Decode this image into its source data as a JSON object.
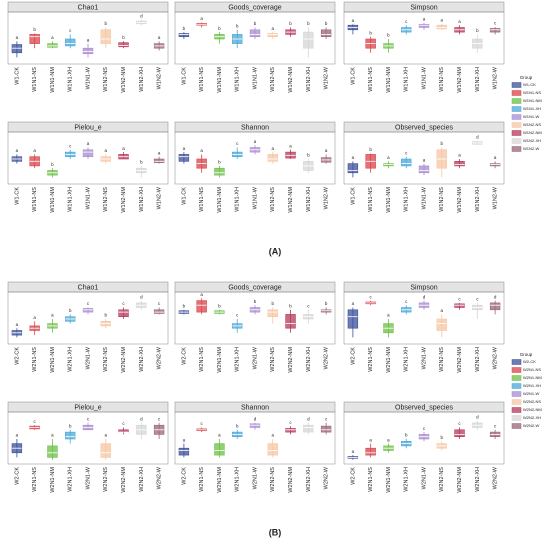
{
  "chart_data": [
    {
      "type": "box",
      "title": "Chao1",
      "categories": [
        "W1-CK",
        "W1N1-NS",
        "W1N1-NM",
        "W1N1-XH",
        "W1N1-W",
        "W1N2-NS",
        "W1N2-NM",
        "W1N2-XH",
        "W1N2-W"
      ],
      "ylim": [
        0,
        10
      ],
      "low": [
        1,
        3,
        3,
        3,
        1,
        3,
        3,
        8,
        2.5
      ],
      "q1": [
        2,
        4,
        3.2,
        3.5,
        1.8,
        4,
        3.3,
        8.3,
        3
      ],
      "median": [
        3,
        5.5,
        3.5,
        4,
        2.3,
        5,
        3.6,
        8.6,
        3.5
      ],
      "q3": [
        3.8,
        6,
        4,
        5,
        3,
        7,
        4.2,
        8.9,
        4
      ],
      "high": [
        4.5,
        6.2,
        4.5,
        6,
        4,
        7.5,
        4.5,
        9.2,
        4.5
      ],
      "letters": [
        "a",
        "b",
        "a",
        "c",
        "a",
        "b",
        "b",
        "d",
        "a"
      ]
    },
    {
      "type": "box",
      "title": "Goods_coverage",
      "categories": [
        "W1-CK",
        "W1N1-NS",
        "W1N1-NM",
        "W1N1-XH",
        "W1N1-W",
        "W1N2-NS",
        "W1N2-NM",
        "W1N2-XH",
        "W1N2-W"
      ],
      "ylim": [
        0,
        10
      ],
      "low": [
        5,
        7.5,
        4,
        3,
        5,
        5,
        5.5,
        1,
        5
      ],
      "q1": [
        5.5,
        8,
        5,
        4,
        5.5,
        5.5,
        6,
        3,
        5.5
      ],
      "median": [
        6,
        8.2,
        5.5,
        5,
        6,
        6,
        6.5,
        5,
        6
      ],
      "q3": [
        6.2,
        8.4,
        6,
        6,
        7,
        6.2,
        7,
        6.5,
        7
      ],
      "high": [
        6.5,
        8.6,
        6.5,
        7,
        7.5,
        6.5,
        7.5,
        7.5,
        7.5
      ],
      "letters": [
        "b",
        "a",
        "b",
        "b",
        "b",
        "a",
        "b",
        "b",
        "b"
      ]
    },
    {
      "type": "box",
      "title": "Simpson",
      "categories": [
        "W1-CK",
        "W1N1-NS",
        "W1N1-NM",
        "W1N1-XH",
        "W1N1-W",
        "W1N2-NS",
        "W1N2-NM",
        "W1N2-XH",
        "W1N2-W"
      ],
      "ylim": [
        0,
        10
      ],
      "low": [
        6,
        2,
        2,
        6,
        7,
        7,
        6,
        2,
        6
      ],
      "q1": [
        7,
        3,
        3,
        6.5,
        7.5,
        7.2,
        6.5,
        3,
        6.5
      ],
      "median": [
        7.5,
        4,
        3.5,
        7,
        8,
        7.5,
        7,
        4,
        7
      ],
      "q3": [
        8,
        5,
        4,
        7.5,
        8.2,
        8,
        7.5,
        5,
        7.3
      ],
      "high": [
        8.2,
        5.5,
        5,
        8,
        8.5,
        8.3,
        8,
        6,
        7.6
      ],
      "letters": [
        "a",
        "b",
        "b",
        "c",
        "a",
        "a",
        "a",
        "b",
        "c"
      ]
    },
    {
      "type": "box",
      "title": "Pielou_e",
      "categories": [
        "W1-CK",
        "W1N1-NS",
        "W1N1-NM",
        "W1N1-XH",
        "W1N1-W",
        "W1N2-NS",
        "W1N2-NM",
        "W1N2-XH",
        "W1N2-W"
      ],
      "ylim": [
        0,
        10
      ],
      "low": [
        4,
        3,
        1,
        5,
        5,
        4,
        5,
        1,
        4
      ],
      "q1": [
        4.5,
        3.5,
        1.5,
        5.5,
        5.5,
        4.5,
        5,
        2,
        4.2
      ],
      "median": [
        5,
        4.5,
        2,
        6,
        6.5,
        5,
        5.5,
        2.5,
        4.5
      ],
      "q3": [
        5.5,
        5.5,
        2.5,
        6.5,
        7,
        5.5,
        6,
        3,
        5
      ],
      "high": [
        6,
        6,
        3,
        7,
        7.5,
        6,
        6.5,
        3.5,
        5.5
      ],
      "letters": [
        "a",
        "a",
        "b",
        "c",
        "a",
        "a",
        "a",
        "b",
        "a"
      ]
    },
    {
      "type": "box",
      "title": "Shannon",
      "categories": [
        "W1-CK",
        "W1N1-NS",
        "W1N1-NM",
        "W1N1-XH",
        "W1N1-W",
        "W1N2-NS",
        "W1N2-NM",
        "W1N2-XH",
        "W1N2-W"
      ],
      "ylim": [
        0,
        10
      ],
      "low": [
        4,
        2,
        1,
        5,
        6,
        4,
        5,
        2,
        4
      ],
      "q1": [
        4.5,
        3,
        1.5,
        5.5,
        6.5,
        4.5,
        5.2,
        2.5,
        4.3
      ],
      "median": [
        5.5,
        4,
        2,
        6,
        7,
        5,
        5.8,
        3.5,
        4.8
      ],
      "q3": [
        6,
        5,
        3,
        6.5,
        7.5,
        6,
        6.5,
        4.5,
        5.3
      ],
      "high": [
        6.5,
        6,
        3.5,
        7.5,
        8,
        6.5,
        7,
        5,
        6
      ],
      "letters": [
        "a",
        "a",
        "b",
        "c",
        "a",
        "a",
        "a",
        "b",
        "a"
      ]
    },
    {
      "type": "box",
      "title": "Observed_species",
      "categories": [
        "W1-CK",
        "W1N1-NS",
        "W1N1-NM",
        "W1N1-XH",
        "W1N1-W",
        "W1N2-NS",
        "W1N2-NM",
        "W1N2-XH",
        "W1N2-W"
      ],
      "ylim": [
        0,
        10
      ],
      "low": [
        1,
        2,
        3,
        3,
        1.5,
        1,
        3,
        8,
        3
      ],
      "q1": [
        2,
        3,
        3.5,
        3.5,
        2,
        3,
        3.5,
        8.2,
        3.5
      ],
      "median": [
        2.5,
        4.5,
        3.8,
        4,
        2.5,
        5,
        3.8,
        8.5,
        3.8
      ],
      "q3": [
        4,
        6,
        4,
        5,
        3.5,
        7,
        4.5,
        8.8,
        4
      ],
      "high": [
        4.5,
        6.2,
        4.5,
        5.5,
        4,
        7.5,
        5,
        9,
        4.5
      ],
      "letters": [
        "a",
        "b",
        "a",
        "c",
        "a",
        "b",
        "a",
        "d",
        "a"
      ]
    },
    {
      "type": "box",
      "title": "Chao1",
      "categories": [
        "W2-CK",
        "W2N1-NS",
        "W2N1-NM",
        "W2N1-XH",
        "W2N1-W",
        "W2N2-NS",
        "W2N2-NM",
        "W2N2-XH",
        "W2N2-W"
      ],
      "ylim": [
        0,
        10
      ],
      "low": [
        1,
        1.5,
        2,
        4,
        6,
        3,
        5,
        7,
        6
      ],
      "q1": [
        1.5,
        2.5,
        3,
        4.5,
        6.5,
        3.5,
        5.5,
        7.5,
        6.2
      ],
      "median": [
        2,
        3,
        3.5,
        5,
        7,
        4,
        6.5,
        8,
        6.5
      ],
      "q3": [
        2.5,
        3.5,
        4,
        5.5,
        7.3,
        4.5,
        7,
        8.5,
        7
      ],
      "high": [
        3,
        4.5,
        5,
        6,
        7.5,
        5,
        7.5,
        9,
        7.5
      ],
      "letters": [
        "a",
        "a",
        "a",
        "b",
        "c",
        "b",
        "c",
        "d",
        "c"
      ]
    },
    {
      "type": "box",
      "title": "Goods_coverage",
      "categories": [
        "W2-CK",
        "W2N1-NS",
        "W2N1-NM",
        "W2N1-XH",
        "W2N1-W",
        "W2N2-NS",
        "W2N2-NM",
        "W2N2-XH",
        "W2N2-W"
      ],
      "ylim": [
        0,
        10
      ],
      "low": [
        6,
        6,
        6,
        2,
        6,
        4,
        2,
        4,
        6
      ],
      "q1": [
        6.2,
        6.5,
        6.2,
        3,
        6.5,
        5.5,
        3,
        5,
        6.5
      ],
      "median": [
        6.5,
        8,
        6.5,
        3.5,
        7,
        6.5,
        4,
        5.5,
        6.8
      ],
      "q3": [
        6.8,
        9,
        6.8,
        4,
        7.5,
        7,
        6,
        6,
        7
      ],
      "high": [
        7,
        9.5,
        7,
        5,
        8,
        7.5,
        7,
        7,
        7.5
      ],
      "letters": [
        "b",
        "a",
        "b",
        "c",
        "b",
        "b",
        "b",
        "c",
        "b"
      ]
    },
    {
      "type": "box",
      "title": "Simpson",
      "categories": [
        "W2-CK",
        "W2N1-NS",
        "W2N1-NM",
        "W2N1-XH",
        "W2N1-W",
        "W2N2-NS",
        "W2N2-NM",
        "W2N2-XH",
        "W2N2-W"
      ],
      "ylim": [
        0,
        10
      ],
      "low": [
        1,
        8,
        1,
        6,
        7,
        1,
        7,
        5,
        6
      ],
      "q1": [
        3,
        8.3,
        2,
        6.5,
        7.5,
        2.5,
        7.5,
        7,
        7
      ],
      "median": [
        5.5,
        8.5,
        3,
        7,
        8,
        4,
        8,
        7.5,
        8
      ],
      "q3": [
        7,
        8.7,
        4,
        7.5,
        8.5,
        5,
        8.3,
        8,
        8.5
      ],
      "high": [
        7.5,
        9,
        5,
        8,
        9,
        6,
        8.5,
        8.5,
        9
      ],
      "letters": [
        "a",
        "c",
        "a",
        "c",
        "d",
        "a",
        "c",
        "c",
        "d"
      ]
    },
    {
      "type": "box",
      "title": "Pielou_e",
      "categories": [
        "W2-CK",
        "W2N1-NS",
        "W2N1-NM",
        "W2N1-XH",
        "W2N1-W",
        "W2N2-NS",
        "W2N2-NM",
        "W2N2-XH",
        "W2N2-W"
      ],
      "ylim": [
        0,
        10
      ],
      "low": [
        1,
        7,
        0.5,
        4,
        7,
        0.5,
        6,
        5,
        5
      ],
      "q1": [
        2,
        7.2,
        1,
        5,
        7,
        1,
        6.5,
        6,
        6
      ],
      "median": [
        3,
        7.5,
        2,
        5.5,
        7.5,
        2,
        6.5,
        7,
        7
      ],
      "q3": [
        4,
        7.8,
        3.5,
        6.5,
        8,
        4,
        7,
        8,
        8
      ],
      "high": [
        5,
        8,
        5,
        7,
        8.5,
        5,
        7.5,
        8.5,
        8.5
      ],
      "letters": [
        "a",
        "c",
        "a",
        "b",
        "c",
        "a",
        "c",
        "d",
        "c"
      ]
    },
    {
      "type": "box",
      "title": "Shannon",
      "categories": [
        "W2-CK",
        "W2N1-NS",
        "W2N1-NM",
        "W2N1-XH",
        "W2N1-W",
        "W2N2-NS",
        "W2N2-NM",
        "W2N2-XH",
        "W2N2-W"
      ],
      "ylim": [
        0,
        10
      ],
      "low": [
        1,
        6.5,
        1,
        5,
        7,
        1,
        6,
        6,
        6
      ],
      "q1": [
        1.5,
        6.8,
        1.5,
        5.5,
        7.5,
        1.5,
        6.5,
        6.5,
        6.5
      ],
      "median": [
        2.5,
        7,
        2.5,
        6,
        8,
        2.5,
        7,
        7.5,
        7
      ],
      "q3": [
        3,
        7.2,
        4,
        6.5,
        8.3,
        4,
        7.3,
        8,
        7.8
      ],
      "high": [
        4,
        7.5,
        5,
        7,
        8.5,
        5,
        7.8,
        8.5,
        8.5
      ],
      "letters": [
        "a",
        "c",
        "a",
        "b",
        "d",
        "a",
        "c",
        "d",
        "c"
      ]
    },
    {
      "type": "box",
      "title": "Observed_species",
      "categories": [
        "W2-CK",
        "W2N1-NS",
        "W2N1-NM",
        "W2N1-XH",
        "W2N1-W",
        "W2N2-NS",
        "W2N2-NM",
        "W2N2-XH",
        "W2N2-W"
      ],
      "ylim": [
        0,
        10
      ],
      "low": [
        0.5,
        1,
        2,
        3,
        4.5,
        2.5,
        5,
        7,
        5
      ],
      "q1": [
        0.8,
        1.5,
        2.5,
        3.5,
        5,
        3,
        5.5,
        7.5,
        5.5
      ],
      "median": [
        1,
        2,
        3,
        4,
        5.5,
        3.5,
        6,
        8,
        6
      ],
      "q3": [
        1.2,
        3,
        3.5,
        4.5,
        6,
        4,
        7,
        8.5,
        6.5
      ],
      "high": [
        1.5,
        4,
        4,
        5,
        6.5,
        4.5,
        7.5,
        9,
        7
      ],
      "letters": [
        "a",
        "a",
        "a",
        "b",
        "c",
        "b",
        "c",
        "d",
        "c"
      ]
    }
  ],
  "legends": [
    {
      "title": "Group",
      "entries": [
        "W1-CK",
        "W1N1-NS",
        "W1N1-NM",
        "W1N1-XH",
        "W1N1-W",
        "W1N2-NS",
        "W1N2-NM",
        "W1N2-XH",
        "W1N2-W"
      ],
      "colors": [
        "#3b4f9a",
        "#d9434b",
        "#6cbf46",
        "#4aa8d8",
        "#a98bd0",
        "#f6c6a4",
        "#b5385a",
        "#d6d6d6",
        "#9a6577"
      ]
    },
    {
      "title": "Group",
      "entries": [
        "W2-CK",
        "W2N1-NS",
        "W2N1-NM",
        "W2N1-XH",
        "W2N1-W",
        "W2N2-NS",
        "W2N2-NM",
        "W2N2-XH",
        "W2N2-W"
      ],
      "colors": [
        "#3b4f9a",
        "#d9434b",
        "#6cbf46",
        "#4aa8d8",
        "#a98bd0",
        "#f6c6a4",
        "#b5385a",
        "#d6d6d6",
        "#9a6577"
      ]
    }
  ],
  "panel_labels": [
    "(A)",
    "(B)"
  ]
}
